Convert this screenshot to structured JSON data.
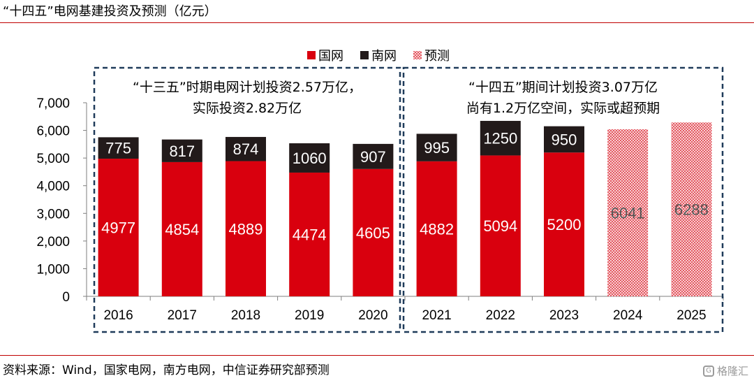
{
  "title": "“十四五”电网基建投资及预测（亿元）",
  "source": "资料来源：Wind，国家电网，南方电网，中信证券研究部预测",
  "watermark": "格隆汇",
  "colors": {
    "guowang": "#d9000e",
    "nanwang": "#221a1a",
    "forecast": "#d9000e",
    "box": "#1f3b5a"
  },
  "annotations": [
    {
      "lines": [
        "“十三五”时期电网计划投资2.57万亿，",
        "实际投资2.82万亿"
      ]
    },
    {
      "lines": [
        "“十四五”期间计划投资3.07万亿",
        "尚有1.2万亿空间，实际或超预期"
      ]
    }
  ],
  "chart_data": {
    "type": "bar",
    "stacked": true,
    "categories": [
      "2016",
      "2017",
      "2018",
      "2019",
      "2020",
      "2021",
      "2022",
      "2023",
      "2024",
      "2025"
    ],
    "series": [
      {
        "name": "国网",
        "values": [
          4977,
          4854,
          4889,
          4474,
          4605,
          4882,
          5094,
          5200,
          null,
          null
        ]
      },
      {
        "name": "南网",
        "values": [
          775,
          817,
          874,
          1060,
          907,
          995,
          1250,
          950,
          null,
          null
        ]
      },
      {
        "name": "预测",
        "values": [
          null,
          null,
          null,
          null,
          null,
          null,
          null,
          null,
          6041,
          6288
        ]
      }
    ],
    "y_ticks": [
      "0",
      "1,000",
      "2,000",
      "3,000",
      "4,000",
      "5,000",
      "6,000",
      "7,000"
    ],
    "ylim": [
      0,
      7000
    ],
    "grid": false,
    "legend": "top-right"
  }
}
